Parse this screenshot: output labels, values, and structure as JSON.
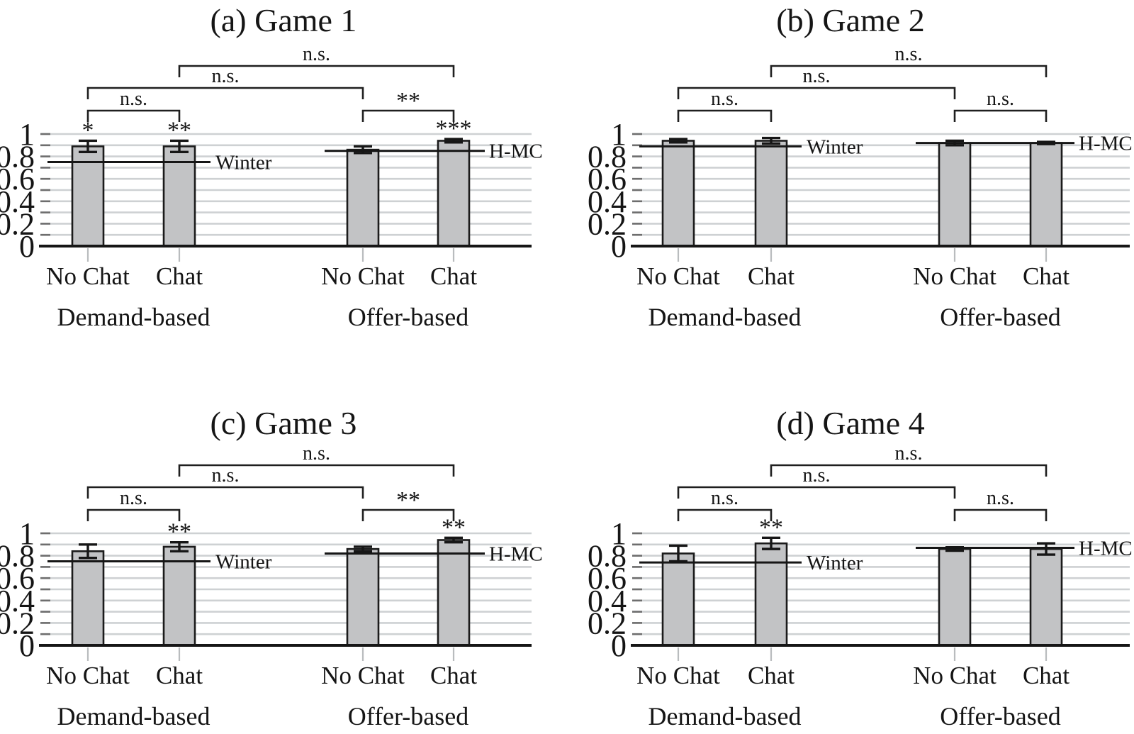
{
  "chart_data": [
    {
      "panel": "a",
      "type": "bar",
      "title": "(a) Game 1",
      "categories": [
        "No Chat",
        "Chat",
        "No Chat",
        "Chat"
      ],
      "groups": [
        {
          "label": "Demand-based",
          "bars": [
            0,
            1
          ]
        },
        {
          "label": "Offer-based",
          "bars": [
            2,
            3
          ]
        }
      ],
      "values": [
        0.89,
        0.89,
        0.86,
        0.94
      ],
      "errors": [
        0.05,
        0.05,
        0.03,
        0.015
      ],
      "bar_significance": [
        "*",
        "**",
        "",
        "***"
      ],
      "ref_lines": [
        {
          "label": "Winter",
          "value": 0.75,
          "side": "left"
        },
        {
          "label": "H-MC",
          "value": 0.85,
          "side": "right"
        }
      ],
      "brackets": [
        {
          "between": [
            0,
            1
          ],
          "level": 1,
          "label": "n.s."
        },
        {
          "between": [
            2,
            3
          ],
          "level": 1,
          "label": "**"
        },
        {
          "between": [
            0,
            2
          ],
          "level": 2,
          "label": "n.s."
        },
        {
          "between": [
            1,
            3
          ],
          "level": 3,
          "label": "n.s."
        }
      ],
      "y_axis": {
        "min": 0,
        "max": 1,
        "minor_step": 0.1,
        "tick_values": [
          0,
          0.2,
          0.4,
          0.6,
          0.8,
          1
        ],
        "tick_labels": [
          "0",
          "0.2",
          "0.4",
          "0.6",
          "0.8",
          "1"
        ],
        "grid": true
      }
    },
    {
      "panel": "b",
      "type": "bar",
      "title": "(b) Game 2",
      "categories": [
        "No Chat",
        "Chat",
        "No Chat",
        "Chat"
      ],
      "groups": [
        {
          "label": "Demand-based",
          "bars": [
            0,
            1
          ]
        },
        {
          "label": "Offer-based",
          "bars": [
            2,
            3
          ]
        }
      ],
      "values": [
        0.94,
        0.94,
        0.92,
        0.92
      ],
      "errors": [
        0.015,
        0.025,
        0.02,
        0.01
      ],
      "bar_significance": [
        "",
        "",
        "",
        ""
      ],
      "ref_lines": [
        {
          "label": "Winter",
          "value": 0.89,
          "side": "left"
        },
        {
          "label": "H-MC",
          "value": 0.92,
          "side": "right"
        }
      ],
      "brackets": [
        {
          "between": [
            0,
            1
          ],
          "level": 1,
          "label": "n.s."
        },
        {
          "between": [
            2,
            3
          ],
          "level": 1,
          "label": "n.s."
        },
        {
          "between": [
            0,
            2
          ],
          "level": 2,
          "label": "n.s."
        },
        {
          "between": [
            1,
            3
          ],
          "level": 3,
          "label": "n.s."
        }
      ],
      "y_axis": {
        "min": 0,
        "max": 1,
        "minor_step": 0.1,
        "tick_values": [
          0,
          0.2,
          0.4,
          0.6,
          0.8,
          1
        ],
        "tick_labels": [
          "0",
          "0.2",
          "0.4",
          "0.6",
          "0.8",
          "1"
        ],
        "grid": true
      }
    },
    {
      "panel": "c",
      "type": "bar",
      "title": "(c) Game 3",
      "categories": [
        "No Chat",
        "Chat",
        "No Chat",
        "Chat"
      ],
      "groups": [
        {
          "label": "Demand-based",
          "bars": [
            0,
            1
          ]
        },
        {
          "label": "Offer-based",
          "bars": [
            2,
            3
          ]
        }
      ],
      "values": [
        0.84,
        0.88,
        0.86,
        0.94
      ],
      "errors": [
        0.06,
        0.04,
        0.02,
        0.02
      ],
      "bar_significance": [
        "",
        "**",
        "",
        "**"
      ],
      "ref_lines": [
        {
          "label": "Winter",
          "value": 0.75,
          "side": "left"
        },
        {
          "label": "H-MC",
          "value": 0.82,
          "side": "right"
        }
      ],
      "brackets": [
        {
          "between": [
            0,
            1
          ],
          "level": 1,
          "label": "n.s."
        },
        {
          "between": [
            2,
            3
          ],
          "level": 1,
          "label": "**"
        },
        {
          "between": [
            0,
            2
          ],
          "level": 2,
          "label": "n.s."
        },
        {
          "between": [
            1,
            3
          ],
          "level": 3,
          "label": "n.s."
        }
      ],
      "y_axis": {
        "min": 0,
        "max": 1,
        "minor_step": 0.1,
        "tick_values": [
          0,
          0.2,
          0.4,
          0.6,
          0.8,
          1
        ],
        "tick_labels": [
          "0",
          "0.2",
          "0.4",
          "0.6",
          "0.8",
          "1"
        ],
        "grid": true
      }
    },
    {
      "panel": "d",
      "type": "bar",
      "title": "(d) Game 4",
      "categories": [
        "No Chat",
        "Chat",
        "No Chat",
        "Chat"
      ],
      "groups": [
        {
          "label": "Demand-based",
          "bars": [
            0,
            1
          ]
        },
        {
          "label": "Offer-based",
          "bars": [
            2,
            3
          ]
        }
      ],
      "values": [
        0.82,
        0.91,
        0.86,
        0.86
      ],
      "errors": [
        0.07,
        0.05,
        0.015,
        0.05
      ],
      "bar_significance": [
        "",
        "**",
        "",
        ""
      ],
      "ref_lines": [
        {
          "label": "Winter",
          "value": 0.74,
          "side": "left"
        },
        {
          "label": "H-MC",
          "value": 0.87,
          "side": "right"
        }
      ],
      "brackets": [
        {
          "between": [
            0,
            1
          ],
          "level": 1,
          "label": "n.s."
        },
        {
          "between": [
            2,
            3
          ],
          "level": 1,
          "label": "n.s."
        },
        {
          "between": [
            0,
            2
          ],
          "level": 2,
          "label": "n.s."
        },
        {
          "between": [
            1,
            3
          ],
          "level": 3,
          "label": "n.s."
        }
      ],
      "y_axis": {
        "min": 0,
        "max": 1,
        "minor_step": 0.1,
        "tick_values": [
          0,
          0.2,
          0.4,
          0.6,
          0.8,
          1
        ],
        "tick_labels": [
          "0",
          "0.2",
          "0.4",
          "0.6",
          "0.8",
          "1"
        ],
        "grid": true
      }
    }
  ],
  "style": {
    "bar_fill": "#c2c3c5",
    "bar_stroke": "#1b1b1b",
    "grid_color": "#ced1d3",
    "grid_tick_color": "#6e6e6e",
    "axis_color": "#161616",
    "xtick_color": "#b9bcbe",
    "line_color": "#161616",
    "bracket_color": "#1f1f1f",
    "text_color": "#151515",
    "background": "#ffffff"
  }
}
